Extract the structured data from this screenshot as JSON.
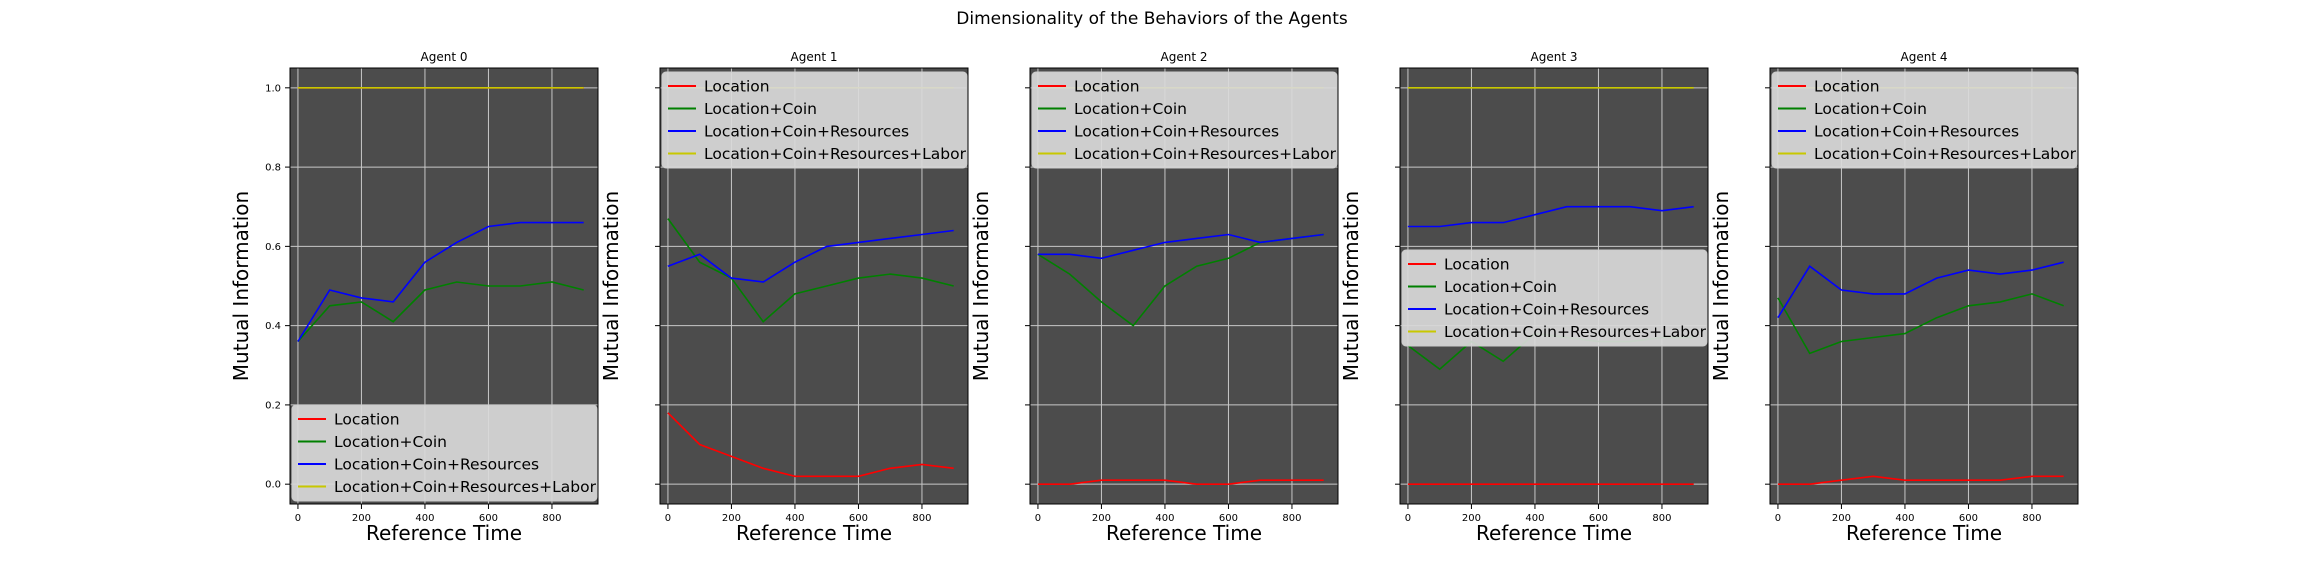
{
  "figure": {
    "title": "Dimensionality of the Behaviors of the Agents"
  },
  "colors": {
    "panel_bg": "#4c4c4c",
    "grid": "#c8c8c8",
    "legend_bg": "#d9d9d9"
  },
  "chart_data": [
    {
      "type": "line",
      "title": "Agent 0",
      "xlabel": "Reference Time",
      "ylabel": "Mutual Information",
      "xlim": [
        -25,
        945
      ],
      "ylim": [
        -0.05,
        1.05
      ],
      "xticks": [
        0,
        200,
        400,
        600,
        800
      ],
      "yticks": [
        0.0,
        0.2,
        0.4,
        0.6,
        0.8,
        1.0
      ],
      "show_ytick_labels": true,
      "grid": true,
      "legend": "lower-right",
      "x": [
        0,
        100,
        200,
        300,
        400,
        500,
        600,
        700,
        800,
        900
      ],
      "series": [
        {
          "name": "Location",
          "color": "#ff0000",
          "values": [
            1.0,
            1.0,
            1.0,
            1.0,
            1.0,
            1.0,
            1.0,
            1.0,
            1.0,
            1.0
          ]
        },
        {
          "name": "Location+Coin",
          "color": "#008000",
          "values": [
            0.36,
            0.45,
            0.46,
            0.41,
            0.49,
            0.51,
            0.5,
            0.5,
            0.51,
            0.49
          ]
        },
        {
          "name": "Location+Coin+Resources",
          "color": "#0000ff",
          "values": [
            0.36,
            0.49,
            0.47,
            0.46,
            0.56,
            0.61,
            0.65,
            0.66,
            0.66,
            0.66
          ]
        },
        {
          "name": "Location+Coin+Resources+Labor",
          "color": "#c8c800",
          "values": [
            1.0,
            1.0,
            1.0,
            1.0,
            1.0,
            1.0,
            1.0,
            1.0,
            1.0,
            1.0
          ]
        }
      ]
    },
    {
      "type": "line",
      "title": "Agent 1",
      "xlabel": "Reference Time",
      "ylabel": "Mutual Information",
      "xlim": [
        -25,
        945
      ],
      "ylim": [
        -0.05,
        1.05
      ],
      "xticks": [
        0,
        200,
        400,
        600,
        800
      ],
      "yticks": [
        0.0,
        0.2,
        0.4,
        0.6,
        0.8,
        1.0
      ],
      "show_ytick_labels": false,
      "grid": true,
      "legend": "upper-right",
      "x": [
        0,
        100,
        200,
        300,
        400,
        500,
        600,
        700,
        800,
        900
      ],
      "series": [
        {
          "name": "Location",
          "color": "#ff0000",
          "values": [
            0.18,
            0.1,
            0.07,
            0.04,
            0.02,
            0.02,
            0.02,
            0.04,
            0.05,
            0.04
          ]
        },
        {
          "name": "Location+Coin",
          "color": "#008000",
          "values": [
            0.67,
            0.56,
            0.52,
            0.41,
            0.48,
            0.5,
            0.52,
            0.53,
            0.52,
            0.5
          ]
        },
        {
          "name": "Location+Coin+Resources",
          "color": "#0000ff",
          "values": [
            0.55,
            0.58,
            0.52,
            0.51,
            0.56,
            0.6,
            0.61,
            0.62,
            0.63,
            0.64
          ]
        },
        {
          "name": "Location+Coin+Resources+Labor",
          "color": "#c8c800",
          "values": [
            1.0,
            1.0,
            1.0,
            1.0,
            1.0,
            1.0,
            1.0,
            1.0,
            1.0,
            1.0
          ]
        }
      ]
    },
    {
      "type": "line",
      "title": "Agent 2",
      "xlabel": "Reference Time",
      "ylabel": "Mutual Information",
      "xlim": [
        -25,
        945
      ],
      "ylim": [
        -0.05,
        1.05
      ],
      "xticks": [
        0,
        200,
        400,
        600,
        800
      ],
      "yticks": [
        0.0,
        0.2,
        0.4,
        0.6,
        0.8,
        1.0
      ],
      "show_ytick_labels": false,
      "grid": true,
      "legend": "upper-right",
      "x": [
        0,
        100,
        200,
        300,
        400,
        500,
        600,
        700,
        800,
        900
      ],
      "series": [
        {
          "name": "Location",
          "color": "#ff0000",
          "values": [
            0.0,
            0.0,
            0.01,
            0.01,
            0.01,
            0.0,
            0.0,
            0.01,
            0.01,
            0.01
          ]
        },
        {
          "name": "Location+Coin",
          "color": "#008000",
          "values": [
            0.58,
            0.53,
            0.46,
            0.4,
            0.5,
            0.55,
            0.57,
            0.61,
            0.62,
            0.63
          ]
        },
        {
          "name": "Location+Coin+Resources",
          "color": "#0000ff",
          "values": [
            0.58,
            0.58,
            0.57,
            0.59,
            0.61,
            0.62,
            0.63,
            0.61,
            0.62,
            0.63
          ]
        },
        {
          "name": "Location+Coin+Resources+Labor",
          "color": "#c8c800",
          "values": [
            1.0,
            1.0,
            1.0,
            1.0,
            1.0,
            1.0,
            1.0,
            1.0,
            1.0,
            1.0
          ]
        }
      ]
    },
    {
      "type": "line",
      "title": "Agent 3",
      "xlabel": "Reference Time",
      "ylabel": "Mutual Information",
      "xlim": [
        -25,
        945
      ],
      "ylim": [
        -0.05,
        1.05
      ],
      "xticks": [
        0,
        200,
        400,
        600,
        800
      ],
      "yticks": [
        0.0,
        0.2,
        0.4,
        0.6,
        0.8,
        1.0
      ],
      "show_ytick_labels": false,
      "grid": true,
      "legend": "center-right",
      "x": [
        0,
        100,
        200,
        300,
        400,
        500,
        600,
        700,
        800,
        900
      ],
      "series": [
        {
          "name": "Location",
          "color": "#ff0000",
          "values": [
            0.0,
            0.0,
            0.0,
            0.0,
            0.0,
            0.0,
            0.0,
            0.0,
            0.0,
            0.0
          ]
        },
        {
          "name": "Location+Coin",
          "color": "#008000",
          "values": [
            0.35,
            0.29,
            0.36,
            0.31,
            0.38,
            0.37,
            0.36,
            0.36,
            0.37,
            0.37
          ]
        },
        {
          "name": "Location+Coin+Resources",
          "color": "#0000ff",
          "values": [
            0.65,
            0.65,
            0.66,
            0.66,
            0.68,
            0.7,
            0.7,
            0.7,
            0.69,
            0.7
          ]
        },
        {
          "name": "Location+Coin+Resources+Labor",
          "color": "#c8c800",
          "values": [
            1.0,
            1.0,
            1.0,
            1.0,
            1.0,
            1.0,
            1.0,
            1.0,
            1.0,
            1.0
          ]
        }
      ]
    },
    {
      "type": "line",
      "title": "Agent 4",
      "xlabel": "Reference Time",
      "ylabel": "Mutual Information",
      "xlim": [
        -25,
        945
      ],
      "ylim": [
        -0.05,
        1.05
      ],
      "xticks": [
        0,
        200,
        400,
        600,
        800
      ],
      "yticks": [
        0.0,
        0.2,
        0.4,
        0.6,
        0.8,
        1.0
      ],
      "show_ytick_labels": false,
      "grid": true,
      "legend": "upper-right",
      "x": [
        0,
        100,
        200,
        300,
        400,
        500,
        600,
        700,
        800,
        900
      ],
      "series": [
        {
          "name": "Location",
          "color": "#ff0000",
          "values": [
            0.0,
            0.0,
            0.01,
            0.02,
            0.01,
            0.01,
            0.01,
            0.01,
            0.02,
            0.02
          ]
        },
        {
          "name": "Location+Coin",
          "color": "#008000",
          "values": [
            0.47,
            0.33,
            0.36,
            0.37,
            0.38,
            0.42,
            0.45,
            0.46,
            0.48,
            0.45
          ]
        },
        {
          "name": "Location+Coin+Resources",
          "color": "#0000ff",
          "values": [
            0.42,
            0.55,
            0.49,
            0.48,
            0.48,
            0.52,
            0.54,
            0.53,
            0.54,
            0.56
          ]
        },
        {
          "name": "Location+Coin+Resources+Labor",
          "color": "#c8c800",
          "values": [
            1.0,
            1.0,
            1.0,
            1.0,
            1.0,
            1.0,
            1.0,
            1.0,
            1.0,
            1.0
          ]
        }
      ]
    }
  ]
}
